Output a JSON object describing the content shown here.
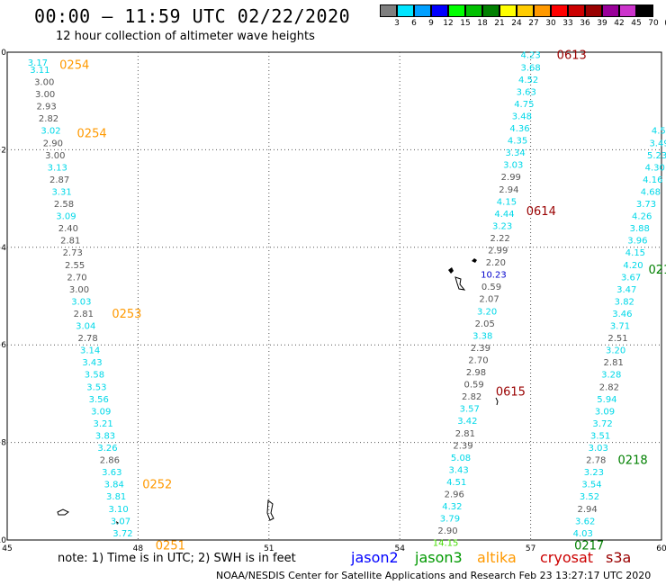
{
  "header": {
    "title": "00:00 – 11:59 UTC 02/22/2020",
    "subtitle": "12 hour collection of altimeter wave heights"
  },
  "color_scale": {
    "labels": [
      "3",
      "6",
      "9",
      "12",
      "15",
      "18",
      "21",
      "24",
      "27",
      "30",
      "33",
      "36",
      "39",
      "42",
      "45",
      "70",
      "(ft)"
    ],
    "colors": [
      "#7f7f7f",
      "#00e5ff",
      "#00a0ff",
      "#0000ff",
      "#00ff00",
      "#00c000",
      "#008000",
      "#ffff00",
      "#ffcc00",
      "#ff9900",
      "#ff0000",
      "#cc0000",
      "#990000",
      "#990099",
      "#cc33cc",
      "#000000"
    ]
  },
  "map": {
    "x_ticks": [
      "45",
      "48",
      "51",
      "54",
      "57",
      "60"
    ],
    "y_ticks": [
      "0",
      "−2",
      "−4",
      "−6",
      "−8",
      "−10"
    ],
    "x_range": [
      45,
      60
    ],
    "y_range": [
      -10,
      0
    ],
    "grid": "dotted"
  },
  "tracks": [
    {
      "sat": "altika",
      "color": "cyan-gray",
      "points": [
        {
          "lon": 45.7,
          "lat": -0.2,
          "v": "3.17",
          "c": "#00d8e8"
        },
        {
          "lon": 45.75,
          "lat": -0.35,
          "v": "3.11",
          "c": "#00d8e8"
        },
        {
          "lon": 45.85,
          "lat": -0.6,
          "v": "3.00",
          "c": "#555555"
        },
        {
          "lon": 45.87,
          "lat": -0.85,
          "v": "3.00",
          "c": "#555555"
        },
        {
          "lon": 45.9,
          "lat": -1.1,
          "v": "2.93",
          "c": "#555555"
        },
        {
          "lon": 45.95,
          "lat": -1.35,
          "v": "2.82",
          "c": "#555555"
        },
        {
          "lon": 46.0,
          "lat": -1.6,
          "v": "3.02",
          "c": "#00d8e8"
        },
        {
          "lon": 46.05,
          "lat": -1.85,
          "v": "2.90",
          "c": "#555555"
        },
        {
          "lon": 46.1,
          "lat": -2.1,
          "v": "3.00",
          "c": "#555555"
        },
        {
          "lon": 46.15,
          "lat": -2.35,
          "v": "3.13",
          "c": "#00d8e8"
        },
        {
          "lon": 46.2,
          "lat": -2.6,
          "v": "2.87",
          "c": "#555555"
        },
        {
          "lon": 46.25,
          "lat": -2.85,
          "v": "3.31",
          "c": "#00d8e8"
        },
        {
          "lon": 46.3,
          "lat": -3.1,
          "v": "2.58",
          "c": "#555555"
        },
        {
          "lon": 46.35,
          "lat": -3.35,
          "v": "3.09",
          "c": "#00d8e8"
        },
        {
          "lon": 46.4,
          "lat": -3.6,
          "v": "2.40",
          "c": "#555555"
        },
        {
          "lon": 46.45,
          "lat": -3.85,
          "v": "2.81",
          "c": "#555555"
        },
        {
          "lon": 46.5,
          "lat": -4.1,
          "v": "2.73",
          "c": "#555555"
        },
        {
          "lon": 46.55,
          "lat": -4.35,
          "v": "2.55",
          "c": "#555555"
        },
        {
          "lon": 46.6,
          "lat": -4.6,
          "v": "2.70",
          "c": "#555555"
        },
        {
          "lon": 46.65,
          "lat": -4.85,
          "v": "3.00",
          "c": "#555555"
        },
        {
          "lon": 46.7,
          "lat": -5.1,
          "v": "3.03",
          "c": "#00d8e8"
        },
        {
          "lon": 46.75,
          "lat": -5.35,
          "v": "2.81",
          "c": "#555555"
        },
        {
          "lon": 46.8,
          "lat": -5.6,
          "v": "3.04",
          "c": "#00d8e8"
        },
        {
          "lon": 46.85,
          "lat": -5.85,
          "v": "2.78",
          "c": "#555555"
        },
        {
          "lon": 46.9,
          "lat": -6.1,
          "v": "3.14",
          "c": "#00d8e8"
        },
        {
          "lon": 46.95,
          "lat": -6.35,
          "v": "3.43",
          "c": "#00d8e8"
        },
        {
          "lon": 47.0,
          "lat": -6.6,
          "v": "3.58",
          "c": "#00d8e8"
        },
        {
          "lon": 47.05,
          "lat": -6.85,
          "v": "3.53",
          "c": "#00d8e8"
        },
        {
          "lon": 47.1,
          "lat": -7.1,
          "v": "3.56",
          "c": "#00d8e8"
        },
        {
          "lon": 47.15,
          "lat": -7.35,
          "v": "3.09",
          "c": "#00d8e8"
        },
        {
          "lon": 47.2,
          "lat": -7.6,
          "v": "3.21",
          "c": "#00d8e8"
        },
        {
          "lon": 47.25,
          "lat": -7.85,
          "v": "3.83",
          "c": "#00d8e8"
        },
        {
          "lon": 47.3,
          "lat": -8.1,
          "v": "3.26",
          "c": "#00d8e8"
        },
        {
          "lon": 47.35,
          "lat": -8.35,
          "v": "2.86",
          "c": "#555555"
        },
        {
          "lon": 47.4,
          "lat": -8.6,
          "v": "3.63",
          "c": "#00d8e8"
        },
        {
          "lon": 47.45,
          "lat": -8.85,
          "v": "3.84",
          "c": "#00d8e8"
        },
        {
          "lon": 47.5,
          "lat": -9.1,
          "v": "3.81",
          "c": "#00d8e8"
        },
        {
          "lon": 47.55,
          "lat": -9.35,
          "v": "3.10",
          "c": "#00d8e8"
        },
        {
          "lon": 47.6,
          "lat": -9.6,
          "v": "3.07",
          "c": "#00d8e8"
        },
        {
          "lon": 47.65,
          "lat": -9.85,
          "v": "3.72",
          "c": "#00d8e8"
        },
        {
          "lon": 47.7,
          "lat": -10.1,
          "v": "3.23",
          "c": "#00d8e8"
        }
      ]
    },
    {
      "sat": "mixed",
      "color": "cyan-gray",
      "points": [
        {
          "lon": 57.0,
          "lat": -0.05,
          "v": "4.23",
          "c": "#00d8e8"
        },
        {
          "lon": 57.0,
          "lat": -0.3,
          "v": "3.68",
          "c": "#00d8e8"
        },
        {
          "lon": 56.95,
          "lat": -0.55,
          "v": "4.52",
          "c": "#00d8e8"
        },
        {
          "lon": 56.9,
          "lat": -0.8,
          "v": "3.63",
          "c": "#00d8e8"
        },
        {
          "lon": 56.85,
          "lat": -1.05,
          "v": "4.75",
          "c": "#00d8e8"
        },
        {
          "lon": 56.8,
          "lat": -1.3,
          "v": "3.48",
          "c": "#00d8e8"
        },
        {
          "lon": 56.75,
          "lat": -1.55,
          "v": "4.36",
          "c": "#00d8e8"
        },
        {
          "lon": 56.7,
          "lat": -1.8,
          "v": "4.35",
          "c": "#00d8e8"
        },
        {
          "lon": 56.65,
          "lat": -2.05,
          "v": "3.34",
          "c": "#00d8e8"
        },
        {
          "lon": 56.6,
          "lat": -2.3,
          "v": "3.03",
          "c": "#00d8e8"
        },
        {
          "lon": 56.55,
          "lat": -2.55,
          "v": "2.99",
          "c": "#555555"
        },
        {
          "lon": 56.5,
          "lat": -2.8,
          "v": "2.94",
          "c": "#555555"
        },
        {
          "lon": 56.45,
          "lat": -3.05,
          "v": "4.15",
          "c": "#00d8e8"
        },
        {
          "lon": 56.4,
          "lat": -3.3,
          "v": "4.44",
          "c": "#00d8e8"
        },
        {
          "lon": 56.35,
          "lat": -3.55,
          "v": "3.23",
          "c": "#00d8e8"
        },
        {
          "lon": 56.3,
          "lat": -3.8,
          "v": "2.22",
          "c": "#555555"
        },
        {
          "lon": 56.25,
          "lat": -4.05,
          "v": "2.99",
          "c": "#555555"
        },
        {
          "lon": 56.2,
          "lat": -4.3,
          "v": "2.20",
          "c": "#555555"
        },
        {
          "lon": 56.15,
          "lat": -4.55,
          "v": "10.23",
          "c": "#0000cc"
        },
        {
          "lon": 56.1,
          "lat": -4.8,
          "v": "0.59",
          "c": "#555555"
        },
        {
          "lon": 56.05,
          "lat": -5.05,
          "v": "2.07",
          "c": "#555555"
        },
        {
          "lon": 56.0,
          "lat": -5.3,
          "v": "3.20",
          "c": "#00d8e8"
        },
        {
          "lon": 55.95,
          "lat": -5.55,
          "v": "2.05",
          "c": "#555555"
        },
        {
          "lon": 55.9,
          "lat": -5.8,
          "v": "3.38",
          "c": "#00d8e8"
        },
        {
          "lon": 55.85,
          "lat": -6.05,
          "v": "2.39",
          "c": "#555555"
        },
        {
          "lon": 55.8,
          "lat": -6.3,
          "v": "2.70",
          "c": "#555555"
        },
        {
          "lon": 55.75,
          "lat": -6.55,
          "v": "2.98",
          "c": "#555555"
        },
        {
          "lon": 55.7,
          "lat": -6.8,
          "v": "0.59",
          "c": "#555555"
        },
        {
          "lon": 55.65,
          "lat": -7.05,
          "v": "2.82",
          "c": "#555555"
        },
        {
          "lon": 55.6,
          "lat": -7.3,
          "v": "3.57",
          "c": "#00d8e8"
        },
        {
          "lon": 55.55,
          "lat": -7.55,
          "v": "3.42",
          "c": "#00d8e8"
        },
        {
          "lon": 55.5,
          "lat": -7.8,
          "v": "2.81",
          "c": "#555555"
        },
        {
          "lon": 55.45,
          "lat": -8.05,
          "v": "2.39",
          "c": "#555555"
        },
        {
          "lon": 55.4,
          "lat": -8.3,
          "v": "5.08",
          "c": "#00d8e8"
        },
        {
          "lon": 55.35,
          "lat": -8.55,
          "v": "3.43",
          "c": "#00d8e8"
        },
        {
          "lon": 55.3,
          "lat": -8.8,
          "v": "4.51",
          "c": "#00d8e8"
        },
        {
          "lon": 55.25,
          "lat": -9.05,
          "v": "2.96",
          "c": "#555555"
        },
        {
          "lon": 55.2,
          "lat": -9.3,
          "v": "4.32",
          "c": "#00d8e8"
        },
        {
          "lon": 55.15,
          "lat": -9.55,
          "v": "3.79",
          "c": "#00d8e8"
        },
        {
          "lon": 55.1,
          "lat": -9.8,
          "v": "2.90",
          "c": "#555555"
        },
        {
          "lon": 55.05,
          "lat": -10.05,
          "v": "14.15",
          "c": "#44dd00"
        },
        {
          "lon": 55.0,
          "lat": -10.3,
          "v": "0.59",
          "c": "#555555"
        },
        {
          "lon": 54.95,
          "lat": -10.55,
          "v": "4.88",
          "c": "#00d8e8"
        }
      ]
    },
    {
      "sat": "jason3",
      "color": "cyan-gray",
      "points": [
        {
          "lon": 60.2,
          "lat": -0.85,
          "v": "3.90",
          "c": "#00d8e8"
        },
        {
          "lon": 60.1,
          "lat": -1.1,
          "v": "3.70",
          "c": "#00d8e8"
        },
        {
          "lon": 60.05,
          "lat": -1.35,
          "v": "3.60",
          "c": "#00d8e8"
        },
        {
          "lon": 60.0,
          "lat": -1.6,
          "v": "4.50",
          "c": "#00d8e8"
        },
        {
          "lon": 59.95,
          "lat": -1.85,
          "v": "3.49",
          "c": "#00d8e8"
        },
        {
          "lon": 59.9,
          "lat": -2.1,
          "v": "5.23",
          "c": "#00d8e8"
        },
        {
          "lon": 59.85,
          "lat": -2.35,
          "v": "4.30",
          "c": "#00d8e8"
        },
        {
          "lon": 59.8,
          "lat": -2.6,
          "v": "4.16",
          "c": "#00d8e8"
        },
        {
          "lon": 59.75,
          "lat": -2.85,
          "v": "4.68",
          "c": "#00d8e8"
        },
        {
          "lon": 59.65,
          "lat": -3.1,
          "v": "3.73",
          "c": "#00d8e8"
        },
        {
          "lon": 59.55,
          "lat": -3.35,
          "v": "4.26",
          "c": "#00d8e8"
        },
        {
          "lon": 59.5,
          "lat": -3.6,
          "v": "3.88",
          "c": "#00d8e8"
        },
        {
          "lon": 59.45,
          "lat": -3.85,
          "v": "3.96",
          "c": "#00d8e8"
        },
        {
          "lon": 59.4,
          "lat": -4.1,
          "v": "4.15",
          "c": "#00d8e8"
        },
        {
          "lon": 59.35,
          "lat": -4.35,
          "v": "4.20",
          "c": "#00d8e8"
        },
        {
          "lon": 59.3,
          "lat": -4.6,
          "v": "3.67",
          "c": "#00d8e8"
        },
        {
          "lon": 59.2,
          "lat": -4.85,
          "v": "3.47",
          "c": "#00d8e8"
        },
        {
          "lon": 59.15,
          "lat": -5.1,
          "v": "3.82",
          "c": "#00d8e8"
        },
        {
          "lon": 59.1,
          "lat": -5.35,
          "v": "3.46",
          "c": "#00d8e8"
        },
        {
          "lon": 59.05,
          "lat": -5.6,
          "v": "3.71",
          "c": "#00d8e8"
        },
        {
          "lon": 59.0,
          "lat": -5.85,
          "v": "2.51",
          "c": "#555555"
        },
        {
          "lon": 58.95,
          "lat": -6.1,
          "v": "3.20",
          "c": "#00d8e8"
        },
        {
          "lon": 58.9,
          "lat": -6.35,
          "v": "2.81",
          "c": "#555555"
        },
        {
          "lon": 58.85,
          "lat": -6.6,
          "v": "3.28",
          "c": "#00d8e8"
        },
        {
          "lon": 58.8,
          "lat": -6.85,
          "v": "2.82",
          "c": "#555555"
        },
        {
          "lon": 58.75,
          "lat": -7.1,
          "v": "5.94",
          "c": "#00d8e8"
        },
        {
          "lon": 58.7,
          "lat": -7.35,
          "v": "3.09",
          "c": "#00d8e8"
        },
        {
          "lon": 58.65,
          "lat": -7.6,
          "v": "3.72",
          "c": "#00d8e8"
        },
        {
          "lon": 58.6,
          "lat": -7.85,
          "v": "3.51",
          "c": "#00d8e8"
        },
        {
          "lon": 58.55,
          "lat": -8.1,
          "v": "3.03",
          "c": "#00d8e8"
        },
        {
          "lon": 58.5,
          "lat": -8.35,
          "v": "2.78",
          "c": "#555555"
        },
        {
          "lon": 58.45,
          "lat": -8.6,
          "v": "3.23",
          "c": "#00d8e8"
        },
        {
          "lon": 58.4,
          "lat": -8.85,
          "v": "3.54",
          "c": "#00d8e8"
        },
        {
          "lon": 58.35,
          "lat": -9.1,
          "v": "3.52",
          "c": "#00d8e8"
        },
        {
          "lon": 58.3,
          "lat": -9.35,
          "v": "2.94",
          "c": "#555555"
        },
        {
          "lon": 58.25,
          "lat": -9.6,
          "v": "3.62",
          "c": "#00d8e8"
        },
        {
          "lon": 58.2,
          "lat": -9.85,
          "v": "4.03",
          "c": "#00d8e8"
        },
        {
          "lon": 58.15,
          "lat": -10.1,
          "v": "4.37",
          "c": "#00d8e8"
        },
        {
          "lon": 58.1,
          "lat": -10.35,
          "v": "3.56",
          "c": "#00d8e8"
        },
        {
          "lon": 58.05,
          "lat": -10.6,
          "v": "3.51",
          "c": "#00d8e8"
        },
        {
          "lon": 58.0,
          "lat": -10.85,
          "v": "4.35",
          "c": "#00d8e8"
        },
        {
          "lon": 57.95,
          "lat": -11.1,
          "v": "3.44",
          "c": "#00d8e8"
        },
        {
          "lon": 57.9,
          "lat": -11.35,
          "v": "4.04",
          "c": "#00d8e8"
        },
        {
          "lon": 57.85,
          "lat": -11.6,
          "v": "3.85",
          "c": "#00d8e8"
        },
        {
          "lon": 57.8,
          "lat": -11.85,
          "v": "17.94",
          "c": "#00aa00"
        }
      ]
    }
  ],
  "time_labels": [
    {
      "text": "0254",
      "lon": 46.2,
      "lat": -0.25,
      "color": "#ff9900"
    },
    {
      "text": "0254",
      "lon": 46.6,
      "lat": -1.65,
      "color": "#ff9900"
    },
    {
      "text": "0253",
      "lon": 47.4,
      "lat": -5.35,
      "color": "#ff9900"
    },
    {
      "text": "0252",
      "lon": 48.1,
      "lat": -8.85,
      "color": "#ff9900"
    },
    {
      "text": "0251",
      "lon": 48.4,
      "lat": -10.1,
      "color": "#ff9900"
    },
    {
      "text": "0613",
      "lon": 57.6,
      "lat": -0.05,
      "color": "#990000"
    },
    {
      "text": "0614",
      "lon": 56.9,
      "lat": -3.25,
      "color": "#990000"
    },
    {
      "text": "0615",
      "lon": 56.2,
      "lat": -6.95,
      "color": "#990000"
    },
    {
      "text": "0219",
      "lon": 59.7,
      "lat": -4.45,
      "color": "#008000"
    },
    {
      "text": "0218",
      "lon": 59.0,
      "lat": -8.35,
      "color": "#008000"
    },
    {
      "text": "0217",
      "lon": 58.0,
      "lat": -10.1,
      "color": "#008000"
    }
  ],
  "footer": {
    "note": "note: 1) Time is in UTC; 2) SWH is in feet",
    "satellites": [
      {
        "name": "jason2",
        "color": "#0000ff"
      },
      {
        "name": "jason3",
        "color": "#009900"
      },
      {
        "name": "altika",
        "color": "#ff9900"
      },
      {
        "name": "cryosat",
        "color": "#cc0000"
      },
      {
        "name": "s3a",
        "color": "#990000"
      }
    ],
    "credit": "NOAA/NESDIS Center for Satellite Applications and Research   Feb 23 13:27:17 UTC 2020"
  }
}
